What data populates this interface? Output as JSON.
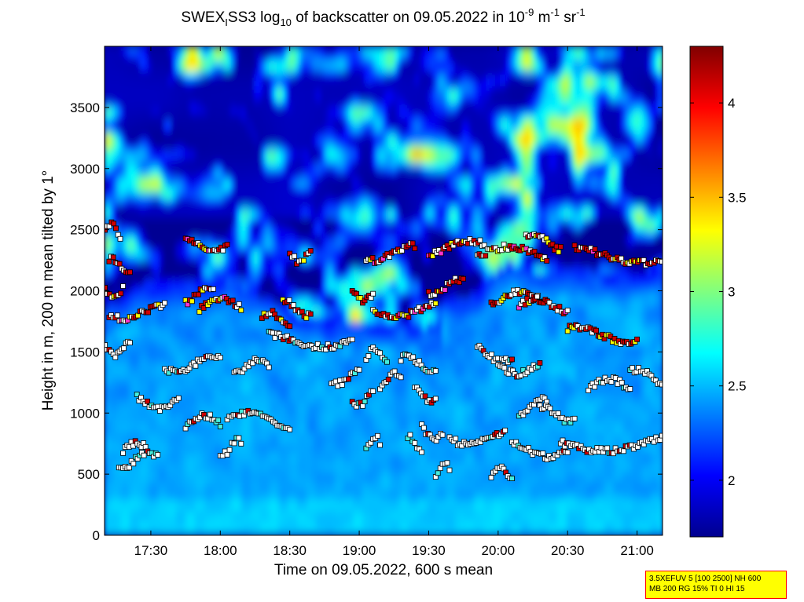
{
  "title": {
    "prefix": "SWEX",
    "sub1": "I",
    "mid": "SS3 log",
    "sub2": "10",
    "after": " of backscatter on 09.05.2022 in 10",
    "sup1": "-9",
    "unit1": " m",
    "sup2": "-1",
    "unit2": " sr",
    "sup3": "-1"
  },
  "info_box": {
    "line1": "3.5XEFUV 5 [100 2500] NH 600",
    "line2": "MB 200 RG 15% TI 0 HI 15"
  },
  "chart_data": {
    "type": "heatmap",
    "xlabel": "Time on 09.05.2022, 600 s mean",
    "ylabel": "Height in m, 200 m mean tilted by 1°",
    "x_range_hours": [
      17.1667,
      21.1833
    ],
    "y_range_m": [
      0,
      4000
    ],
    "x_ticks": [
      "17:30",
      "18:00",
      "18:30",
      "19:00",
      "19:30",
      "20:00",
      "20:30",
      "21:00"
    ],
    "x_tick_hours": [
      17.5,
      18.0,
      18.5,
      19.0,
      19.5,
      20.0,
      20.5,
      21.0
    ],
    "y_ticks": [
      0,
      500,
      1000,
      1500,
      2000,
      2500,
      3000,
      3500
    ],
    "colorbar": {
      "range": [
        1.7,
        4.3
      ],
      "ticks": [
        2,
        2.5,
        3,
        3.5,
        4
      ],
      "tick_labels": [
        "2",
        "2.5",
        "3",
        "3.5",
        "4"
      ],
      "colormap": "jet"
    },
    "layer_markers": [
      {
        "name": "layer_2450",
        "start": 17.17,
        "end": 17.28,
        "height": 2490
      },
      {
        "name": "layer_2250",
        "start": 17.2,
        "end": 17.35,
        "height": 2200
      },
      {
        "name": "layer_2400b",
        "start": 17.75,
        "end": 18.05,
        "height": 2380
      },
      {
        "name": "layer_2350c",
        "start": 18.5,
        "end": 18.65,
        "height": 2300
      },
      {
        "name": "layer_2300d",
        "start": 19.05,
        "end": 19.4,
        "height": 2310
      },
      {
        "name": "layer_2350e",
        "start": 19.5,
        "end": 19.9,
        "height": 2350
      },
      {
        "name": "layer_2300f",
        "start": 19.85,
        "end": 20.35,
        "height": 2300
      },
      {
        "name": "layer_2400g",
        "start": 20.2,
        "end": 20.45,
        "height": 2400
      },
      {
        "name": "layer_2280h",
        "start": 20.55,
        "end": 21.18,
        "height": 2290
      },
      {
        "name": "layer_2000",
        "start": 17.17,
        "end": 17.3,
        "height": 1990
      },
      {
        "name": "layer_1850",
        "start": 17.2,
        "end": 17.6,
        "height": 1830
      },
      {
        "name": "layer_1950b",
        "start": 17.75,
        "end": 17.95,
        "height": 1970
      },
      {
        "name": "layer_1900c",
        "start": 17.85,
        "end": 18.15,
        "height": 1880
      },
      {
        "name": "layer_1800d",
        "start": 18.3,
        "end": 18.5,
        "height": 1760
      },
      {
        "name": "layer_1850e",
        "start": 18.45,
        "end": 18.65,
        "height": 1860
      },
      {
        "name": "layer_1950f",
        "start": 18.95,
        "end": 19.1,
        "height": 1980
      },
      {
        "name": "layer_1850g",
        "start": 19.1,
        "end": 19.55,
        "height": 1840
      },
      {
        "name": "layer_2030h",
        "start": 19.5,
        "end": 19.75,
        "height": 2030
      },
      {
        "name": "layer_1950i",
        "start": 19.95,
        "end": 20.3,
        "height": 1930
      },
      {
        "name": "layer_1850j",
        "start": 20.15,
        "end": 20.5,
        "height": 1870
      },
      {
        "name": "layer_1650",
        "start": 20.5,
        "end": 21.0,
        "height": 1640
      },
      {
        "name": "layer_1600",
        "start": 18.35,
        "end": 18.95,
        "height": 1600
      },
      {
        "name": "layer_1550",
        "start": 17.17,
        "end": 17.35,
        "height": 1540
      },
      {
        "name": "layer_1400",
        "start": 17.6,
        "end": 18.0,
        "height": 1400
      },
      {
        "name": "layer_1350b",
        "start": 18.1,
        "end": 18.35,
        "height": 1370
      },
      {
        "name": "layer_1450c",
        "start": 19.05,
        "end": 19.2,
        "height": 1460
      },
      {
        "name": "layer_1400d",
        "start": 19.3,
        "end": 19.55,
        "height": 1400
      },
      {
        "name": "layer_1500e",
        "start": 19.85,
        "end": 20.1,
        "height": 1480
      },
      {
        "name": "layer_1400f",
        "start": 20.0,
        "end": 20.3,
        "height": 1380
      },
      {
        "name": "layer_1300",
        "start": 18.8,
        "end": 19.0,
        "height": 1300
      },
      {
        "name": "layer_1250",
        "start": 19.15,
        "end": 19.3,
        "height": 1260
      },
      {
        "name": "layer_1200",
        "start": 20.65,
        "end": 20.95,
        "height": 1220
      },
      {
        "name": "layer_1300b",
        "start": 20.95,
        "end": 21.18,
        "height": 1300
      },
      {
        "name": "layer_1150",
        "start": 19.4,
        "end": 19.55,
        "height": 1150
      },
      {
        "name": "layer_1100",
        "start": 17.4,
        "end": 17.7,
        "height": 1100
      },
      {
        "name": "layer_1100b",
        "start": 18.95,
        "end": 19.1,
        "height": 1120
      },
      {
        "name": "layer_1050",
        "start": 20.15,
        "end": 20.35,
        "height": 1060
      },
      {
        "name": "layer_950",
        "start": 17.75,
        "end": 18.0,
        "height": 920
      },
      {
        "name": "layer_950b",
        "start": 18.05,
        "end": 18.5,
        "height": 940
      },
      {
        "name": "layer_1000",
        "start": 20.3,
        "end": 20.55,
        "height": 990
      },
      {
        "name": "layer_850",
        "start": 19.45,
        "end": 19.6,
        "height": 840
      },
      {
        "name": "layer_800",
        "start": 19.65,
        "end": 20.05,
        "height": 800
      },
      {
        "name": "layer_750",
        "start": 18.0,
        "end": 18.15,
        "height": 720
      },
      {
        "name": "layer_750b",
        "start": 19.05,
        "end": 19.15,
        "height": 750
      },
      {
        "name": "layer_700",
        "start": 17.3,
        "end": 17.55,
        "height": 690
      },
      {
        "name": "layer_700b",
        "start": 19.35,
        "end": 19.45,
        "height": 740
      },
      {
        "name": "layer_700c",
        "start": 20.1,
        "end": 20.5,
        "height": 700
      },
      {
        "name": "layer_750d",
        "start": 20.45,
        "end": 21.18,
        "height": 750
      },
      {
        "name": "layer_600",
        "start": 17.27,
        "end": 17.45,
        "height": 600
      },
      {
        "name": "layer_500",
        "start": 19.55,
        "end": 19.65,
        "height": 520
      },
      {
        "name": "layer_480",
        "start": 19.95,
        "end": 20.1,
        "height": 480
      }
    ]
  }
}
